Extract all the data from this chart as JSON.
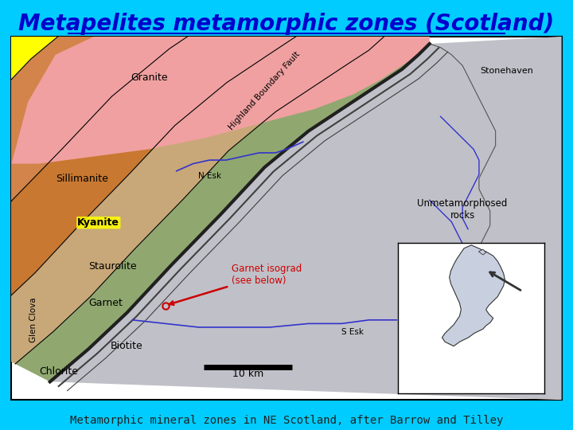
{
  "background_color": "#00CCFF",
  "title": "Metapelites metamorphic zones (Scotland)",
  "title_color": "#0000CC",
  "title_fontsize": 20,
  "caption": "Metamorphic mineral zones in NE Scotland, after Barrow and Tilley",
  "caption_color": "#222222",
  "caption_fontsize": 10,
  "zones": {
    "granite": "#F0A0A0",
    "sillimanite": "#F5F0DC",
    "kyanite": "#FFFF00",
    "staurolite": "#D2844A",
    "garnet": "#C87830",
    "biotite": "#C8A878",
    "chlorite": "#90A870",
    "unmetamorphosed": "#C0C0C8"
  },
  "fault_x": [
    7,
    14,
    21,
    29,
    38,
    46,
    54,
    61,
    67,
    71,
    74,
    76
  ],
  "fault_y": [
    5,
    14,
    24,
    37,
    51,
    64,
    74,
    81,
    87,
    91,
    95,
    98
  ],
  "band_offsets": [
    0,
    8,
    20,
    34,
    52,
    64,
    100
  ],
  "band_colors": [
    "#90A870",
    "#C8A878",
    "#C87830",
    "#D2844A",
    "#FFFF00",
    "#F5F0DC"
  ],
  "granite_x": [
    0,
    0,
    5,
    15,
    25,
    35,
    45,
    55,
    62,
    67,
    71,
    74,
    76,
    76,
    73,
    69,
    63,
    55,
    45,
    35,
    25,
    15,
    8,
    3,
    0
  ],
  "granite_y": [
    100,
    65,
    65,
    67,
    69,
    72,
    76,
    80,
    84,
    88,
    92,
    95,
    98,
    100,
    100,
    100,
    100,
    100,
    100,
    100,
    100,
    100,
    95,
    82,
    65
  ],
  "scale_bar_label": "10 km"
}
